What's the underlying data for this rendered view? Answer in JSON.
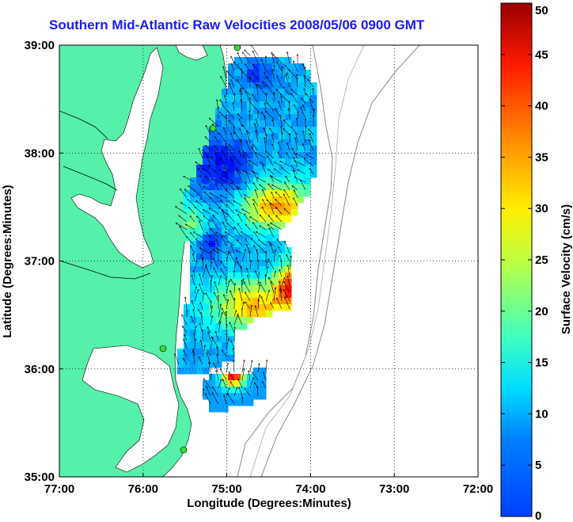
{
  "title": "Southern Mid-Atlantic Raw Velocities 2008/05/06 0900 GMT",
  "map": {
    "xlabel": "Longitude (Degrees:Minutes)",
    "ylabel": "Latitude (Degrees:Minutes)",
    "lon_range": [
      -77,
      -72
    ],
    "lat_range": [
      35,
      39
    ],
    "lon_ticks": [
      {
        "value": -77,
        "label": "77:00"
      },
      {
        "value": -76,
        "label": "76:00"
      },
      {
        "value": -75,
        "label": "75:00"
      },
      {
        "value": -74,
        "label": "74:00"
      },
      {
        "value": -73,
        "label": "73:00"
      },
      {
        "value": -72,
        "label": "72:00"
      }
    ],
    "lat_ticks": [
      {
        "value": 39,
        "label": "39:00"
      },
      {
        "value": 38,
        "label": "38:00"
      },
      {
        "value": 37,
        "label": "37:00"
      },
      {
        "value": 36,
        "label": "36:00"
      },
      {
        "value": 35,
        "label": "35:00"
      }
    ],
    "grid": "dotted",
    "land_color": "#55f0aa",
    "station_color": "#33dd33"
  },
  "colorbar": {
    "label": "Surface Velocity (cm/s)",
    "min": 0,
    "max": 50,
    "ticks": [
      {
        "value": 0,
        "label": "0"
      },
      {
        "value": 5,
        "label": "5"
      },
      {
        "value": 10,
        "label": "10"
      },
      {
        "value": 15,
        "label": "15"
      },
      {
        "value": 20,
        "label": "20"
      },
      {
        "value": 25,
        "label": "25"
      },
      {
        "value": 30,
        "label": "30"
      },
      {
        "value": 35,
        "label": "35"
      },
      {
        "value": 40,
        "label": "40"
      },
      {
        "value": 45,
        "label": "45"
      },
      {
        "value": 50,
        "label": "50"
      }
    ],
    "colormap": "jet"
  }
}
